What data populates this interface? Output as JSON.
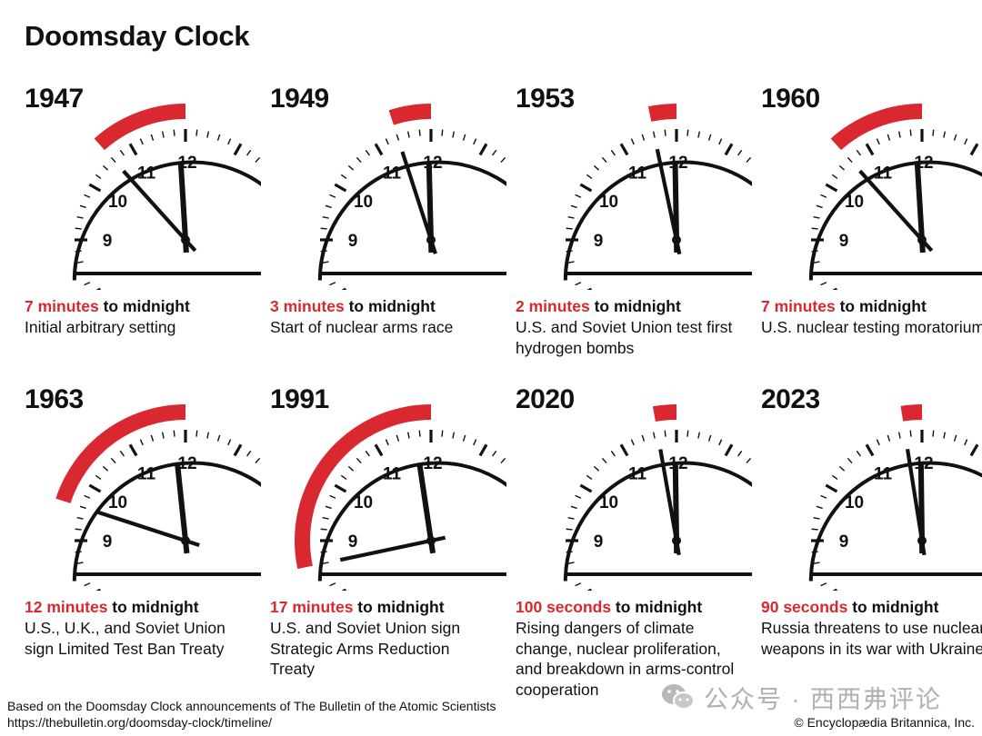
{
  "title": "Doomsday Clock",
  "colors": {
    "accent": "#d9282f",
    "ink": "#111111",
    "watermark": "#b0b0b0"
  },
  "panels": [
    {
      "year": "1947",
      "time": "7 minutes",
      "suffix": " to midnight",
      "description": "Initial arbitrary setting",
      "minutes_to_midnight": 7
    },
    {
      "year": "1949",
      "time": "3 minutes",
      "suffix": " to midnight",
      "description": "Start of nuclear arms race",
      "minutes_to_midnight": 3
    },
    {
      "year": "1953",
      "time": "2 minutes",
      "suffix": " to midnight",
      "description": "U.S. and Soviet Union test first hydrogen bombs",
      "minutes_to_midnight": 2
    },
    {
      "year": "1960",
      "time": "7 minutes",
      "suffix": " to midnight",
      "description": "U.S. nuclear testing moratorium",
      "minutes_to_midnight": 7
    },
    {
      "year": "1963",
      "time": "12 minutes",
      "suffix": " to midnight",
      "description": "U.S., U.K., and Soviet Union sign Limited Test Ban Treaty",
      "minutes_to_midnight": 12
    },
    {
      "year": "1991",
      "time": "17 minutes",
      "suffix": " to midnight",
      "description": "U.S. and Soviet Union sign Strategic Arms Reduction Treaty",
      "minutes_to_midnight": 17
    },
    {
      "year": "2020",
      "time": "100 seconds",
      "suffix": " to midnight",
      "description": "Rising dangers of climate change, nuclear proliferation, and breakdown in arms-control cooperation",
      "minutes_to_midnight": 1.6667
    },
    {
      "year": "2023",
      "time": "90 seconds",
      "suffix": " to midnight",
      "description": "Russia threatens to use nuclear weapons in its war with Ukraine",
      "minutes_to_midnight": 1.5
    }
  ],
  "clock_labels": [
    "9",
    "10",
    "11",
    "12"
  ],
  "footer": {
    "source": "Based on the Doomsday Clock announcements of The Bulletin of the Atomic Scientists",
    "url": "https://thebulletin.org/doomsday-clock/timeline/",
    "copyright": "© Encyclopædia Britannica, Inc."
  },
  "watermark": {
    "text": "公众号 · 西西弗评论",
    "icon": "wechat-icon"
  }
}
